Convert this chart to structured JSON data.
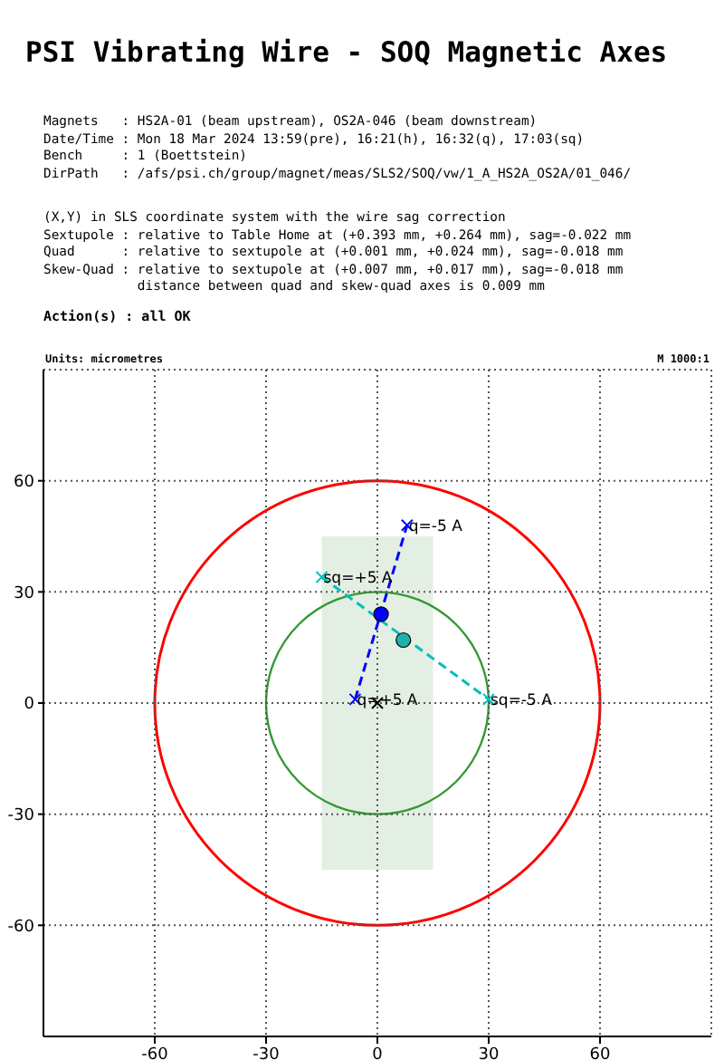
{
  "chart_data": {
    "type": "scatter",
    "title": "PSI Vibrating Wire - SOQ Magnetic Axes",
    "annotations": [
      "Magnets   : HS2A-01 (beam upstream), OS2A-046 (beam downstream)",
      "Date/Time : Mon 18 Mar 2024 13:59(pre), 16:21(h), 16:32(q), 17:03(sq)",
      "Bench     : 1 (Boettstein)",
      "DirPath   : /afs/psi.ch/group/magnet/meas/SLS2/SOQ/vw/1_A_HS2A_OS2A/01_046/",
      "(X,Y) in SLS coordinate system with the wire sag correction",
      "Sextupole : relative to Table Home at (+0.393 mm, +0.264 mm), sag=-0.022 mm",
      "Quad      : relative to sextupole at (+0.001 mm, +0.024 mm), sag=-0.018 mm",
      "Skew-Quad : relative to sextupole at (+0.007 mm, +0.017 mm), sag=-0.018 mm",
      "            distance between quad and skew-quad axes is 0.009 mm",
      "Action(s) : all OK",
      "Units: micrometres",
      "M 1000:1",
      {
        "text": "q=-5 A",
        "x": 8,
        "y": 48
      },
      {
        "text": "q=+5 A",
        "x": -6,
        "y": 1
      },
      {
        "text": "sq=+5 A",
        "x": -15,
        "y": 34
      },
      {
        "text": "sq=-5 A",
        "x": 30,
        "y": 1
      }
    ],
    "xlim": [
      -90,
      90
    ],
    "ylim": [
      -90,
      90
    ],
    "xticks": [
      -60,
      -30,
      0,
      30,
      60
    ],
    "yticks": [
      -60,
      -30,
      0,
      30,
      60
    ],
    "grid": true,
    "series": [
      {
        "type": "line",
        "color": "#0000ff",
        "marker": "cross",
        "line_style": "dashed",
        "x": [
          -6,
          8
        ],
        "values": [
          1,
          48
        ]
      },
      {
        "type": "line",
        "color": "#00bfbf",
        "marker": "cross",
        "line_style": "dashed",
        "x": [
          -15,
          30
        ],
        "values": [
          34,
          1
        ]
      },
      {
        "type": "scatter",
        "color": "#0000ff",
        "marker": "circle",
        "x": [
          1
        ],
        "values": [
          24
        ]
      },
      {
        "type": "scatter",
        "color": "#20b2aa",
        "marker": "circle",
        "x": [
          7
        ],
        "values": [
          17
        ]
      },
      {
        "type": "scatter",
        "color": "#000000",
        "marker": "cross",
        "x": [
          0
        ],
        "values": [
          0
        ]
      }
    ]
  }
}
